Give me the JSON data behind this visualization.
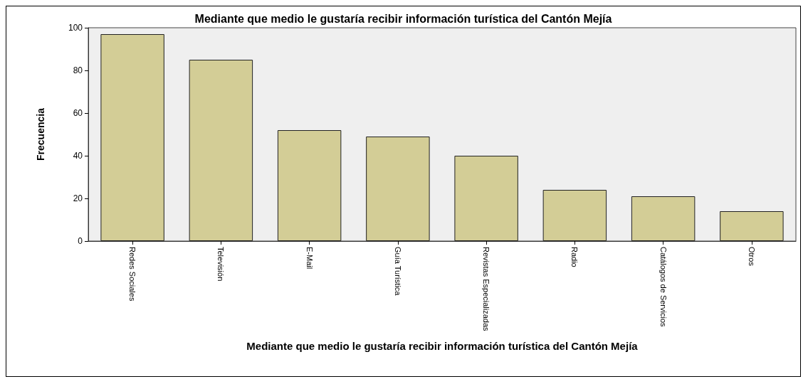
{
  "chart_data": {
    "type": "bar",
    "title": "Mediante que medio le gustaría recibir información turística del Cantón Mejía",
    "xlabel": "Mediante que medio le gustaría recibir información turística del Cantón Mejía",
    "ylabel": "Frecuencia",
    "categories": [
      "Redes Sociales",
      "Televisión",
      "E-Mail",
      "Guía Turística",
      "Revistas Especializadas",
      "Radio",
      "Catálogos de Servicios",
      "Otros"
    ],
    "values": [
      97,
      85,
      52,
      49,
      40,
      24,
      21,
      14
    ],
    "color": "#d3cd96",
    "ylim": [
      0,
      100
    ],
    "yticks": [
      0,
      20,
      40,
      60,
      80,
      100
    ],
    "grid": false
  }
}
